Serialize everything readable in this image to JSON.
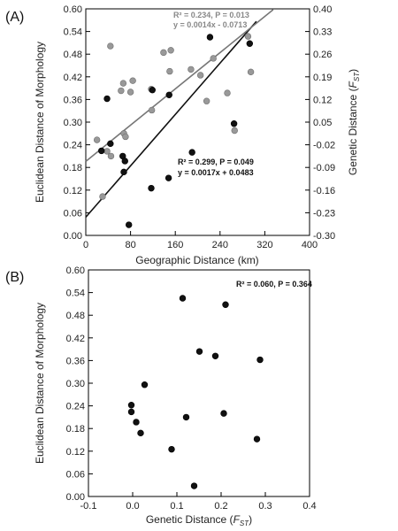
{
  "chart_data": [
    {
      "type": "scatter",
      "panel_label": "(A)",
      "xlabel": "Geographic Distance (km)",
      "ylabel": "Euclidean Distance of Morphology",
      "y2label_main": "Genetic Distance (",
      "y2label_sym": "F",
      "y2label_sub": "ST",
      "y2label_end": ")",
      "xlim": [
        0,
        400
      ],
      "ylim": [
        0,
        0.6
      ],
      "xticks": [
        "0",
        "80",
        "160",
        "240",
        "320",
        "400"
      ],
      "yticks": [
        "0.00",
        "0.06",
        "0.12",
        "0.18",
        "0.24",
        "0.30",
        "0.36",
        "0.42",
        "0.48",
        "0.54",
        "0.60"
      ],
      "y2lim": [
        -0.3,
        0.4
      ],
      "y2ticks": [
        "-0.30",
        "-0.23",
        "-0.16",
        "-0.09",
        "-0.02",
        "0.05",
        "0.12",
        "0.19",
        "0.26",
        "0.33",
        "0.40"
      ],
      "colors": {
        "morphology": "#111111",
        "genetic": "#999999",
        "genetic_line": "#777777"
      },
      "series": [
        {
          "axis": "left",
          "marker": "black",
          "points": [
            [
              28,
              0.224
            ],
            [
              38,
              0.362
            ],
            [
              44,
              0.243
            ],
            [
              66,
              0.21
            ],
            [
              68,
              0.168
            ],
            [
              70,
              0.197
            ],
            [
              77,
              0.028
            ],
            [
              117,
              0.125
            ],
            [
              119,
              0.385
            ],
            [
              148,
              0.152
            ],
            [
              149,
              0.372
            ],
            [
              190,
              0.22
            ],
            [
              222,
              0.525
            ],
            [
              265,
              0.296
            ],
            [
              293,
              0.508
            ]
          ]
        },
        {
          "axis": "right",
          "marker": "gray",
          "points": [
            [
              20,
              -0.005
            ],
            [
              30,
              -0.18
            ],
            [
              38,
              -0.04
            ],
            [
              44,
              0.285
            ],
            [
              45,
              -0.055
            ],
            [
              63,
              0.147
            ],
            [
              67,
              0.17
            ],
            [
              68,
              0.015
            ],
            [
              71,
              0.005
            ],
            [
              80,
              0.143
            ],
            [
              84,
              0.178
            ],
            [
              117,
              0.152
            ],
            [
              118,
              0.087
            ],
            [
              139,
              0.265
            ],
            [
              150,
              0.207
            ],
            [
              152,
              0.272
            ],
            [
              188,
              0.213
            ],
            [
              205,
              0.195
            ],
            [
              216,
              0.115
            ],
            [
              228,
              0.247
            ],
            [
              253,
              0.14
            ],
            [
              266,
              0.024
            ],
            [
              290,
              0.315
            ],
            [
              295,
              0.205
            ]
          ]
        }
      ],
      "fits": [
        {
          "axis": "left",
          "slope": 0.0017,
          "intercept": 0.0483,
          "x_range": [
            0,
            305
          ],
          "stats": "R² = 0.299, P = 0.049",
          "equation": "y = 0.0017x + 0.0483"
        },
        {
          "axis": "right",
          "slope": 0.0014,
          "intercept": -0.0713,
          "x_range": [
            0,
            335
          ],
          "stats": "R² = 0.234, P = 0.013",
          "equation": "y = 0.0014x - 0.0713"
        }
      ]
    },
    {
      "type": "scatter",
      "panel_label": "(B)",
      "xlabel_main": "Genetic Distance (",
      "xlabel_sym": "F",
      "xlabel_sub": "ST",
      "xlabel_end": ")",
      "ylabel": "Euclidean Distance of Morphology",
      "xlim": [
        -0.1,
        0.4
      ],
      "ylim": [
        0,
        0.6
      ],
      "xticks": [
        "-0.1",
        "0.0",
        "0.1",
        "0.2",
        "0.3",
        "0.4"
      ],
      "yticks": [
        "0.00",
        "0.06",
        "0.12",
        "0.18",
        "0.24",
        "0.30",
        "0.36",
        "0.42",
        "0.48",
        "0.54",
        "0.60"
      ],
      "stats": "R² = 0.060, P = 0.364",
      "points": [
        [
          -0.003,
          0.242
        ],
        [
          -0.003,
          0.224
        ],
        [
          0.008,
          0.197
        ],
        [
          0.018,
          0.168
        ],
        [
          0.027,
          0.296
        ],
        [
          0.088,
          0.125
        ],
        [
          0.113,
          0.525
        ],
        [
          0.121,
          0.21
        ],
        [
          0.139,
          0.028
        ],
        [
          0.151,
          0.384
        ],
        [
          0.187,
          0.372
        ],
        [
          0.206,
          0.22
        ],
        [
          0.21,
          0.508
        ],
        [
          0.281,
          0.152
        ],
        [
          0.288,
          0.362
        ]
      ]
    }
  ]
}
